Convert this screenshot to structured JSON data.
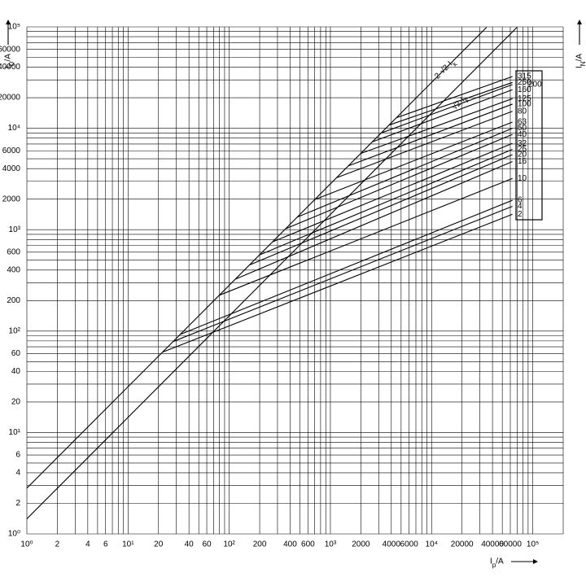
{
  "chart_data": {
    "type": "line",
    "xscale": "log",
    "yscale": "log",
    "grid": true,
    "color": "#000000",
    "xlabel": "I_p/A",
    "ylabel": "I_D/A",
    "y2label": "I_N/A",
    "xlim": [
      1,
      200000
    ],
    "ylim": [
      1,
      100000
    ],
    "xticks": [
      {
        "value": 1,
        "label": "10⁰"
      },
      2,
      4,
      6,
      {
        "value": 10,
        "label": "10¹"
      },
      20,
      40,
      60,
      {
        "value": 100,
        "label": "10²"
      },
      200,
      400,
      600,
      {
        "value": 1000,
        "label": "10³"
      },
      2000,
      4000,
      6000,
      {
        "value": 10000,
        "label": "10⁴"
      },
      20000,
      40000,
      60000,
      {
        "value": 100000,
        "label": "10⁵"
      }
    ],
    "yticks": [
      {
        "value": 1,
        "label": "10⁰"
      },
      2,
      4,
      6,
      {
        "value": 10,
        "label": "10¹"
      },
      20,
      40,
      60,
      {
        "value": 100,
        "label": "10²"
      },
      200,
      400,
      600,
      {
        "value": 1000,
        "label": "10³"
      },
      2000,
      4000,
      6000,
      {
        "value": 10000,
        "label": "10⁴"
      },
      20000,
      40000,
      60000,
      {
        "value": 100000,
        "label": "10⁵"
      }
    ],
    "xgrid": [
      3,
      5,
      7,
      8,
      9,
      30,
      50,
      70,
      80,
      90,
      300,
      500,
      700,
      800,
      900,
      3000,
      5000,
      7000,
      8000,
      9000,
      30000,
      50000,
      70000,
      80000,
      90000,
      200000
    ],
    "ygrid": [
      3,
      5,
      7,
      8,
      9,
      30,
      50,
      70,
      80,
      90,
      300,
      500,
      700,
      800,
      900,
      3000,
      5000,
      7000,
      8000,
      9000,
      30000,
      50000,
      70000,
      80000,
      90000
    ],
    "reference_lines": [
      {
        "name": "2·√2·I_k",
        "x": [
          1,
          35000
        ],
        "values": [
          2.83,
          99000
        ]
      },
      {
        "name": "√2·I_k",
        "x": [
          1,
          70000
        ],
        "values": [
          1.41,
          99000
        ]
      }
    ],
    "series": [
      {
        "name": "315",
        "x": [
          4500,
          63000
        ],
        "values": [
          12700,
          32400
        ]
      },
      {
        "name": "250",
        "x": [
          3800,
          63000
        ],
        "values": [
          10750,
          28300
        ]
      },
      {
        "name": "200",
        "x": [
          3200,
          63000
        ],
        "values": [
          9000,
          27000
        ]
      },
      {
        "name": "160",
        "x": [
          2600,
          63000
        ],
        "values": [
          7350,
          24000
        ]
      },
      {
        "name": "125",
        "x": [
          2000,
          63000
        ],
        "values": [
          5650,
          19600
        ]
      },
      {
        "name": "100",
        "x": [
          1500,
          63000
        ],
        "values": [
          4250,
          17300
        ]
      },
      {
        "name": "80",
        "x": [
          1150,
          63000
        ],
        "values": [
          3250,
          14700
        ]
      },
      {
        "name": "63",
        "x": [
          700,
          63000
        ],
        "values": [
          1980,
          11500
        ]
      },
      {
        "name": "50",
        "x": [
          470,
          63000
        ],
        "values": [
          1330,
          10000
        ]
      },
      {
        "name": "40",
        "x": [
          360,
          63000
        ],
        "values": [
          1020,
          8700
        ]
      },
      {
        "name": "32",
        "x": [
          270,
          63000
        ],
        "values": [
          760,
          7100
        ]
      },
      {
        "name": "25",
        "x": [
          200,
          63000
        ],
        "values": [
          565,
          6200
        ]
      },
      {
        "name": "20",
        "x": [
          160,
          63000
        ],
        "values": [
          450,
          5500
        ]
      },
      {
        "name": "16",
        "x": [
          115,
          63000
        ],
        "values": [
          325,
          4700
        ]
      },
      {
        "name": "10",
        "x": [
          80,
          63000
        ],
        "values": [
          226,
          3200
        ]
      },
      {
        "name": "6",
        "x": [
          33,
          63000
        ],
        "values": [
          93,
          1950
        ]
      },
      {
        "name": "4",
        "x": [
          28,
          63000
        ],
        "values": [
          79,
          1700
        ]
      },
      {
        "name": "2",
        "x": [
          22,
          63000
        ],
        "values": [
          62,
          1420
        ]
      }
    ]
  }
}
